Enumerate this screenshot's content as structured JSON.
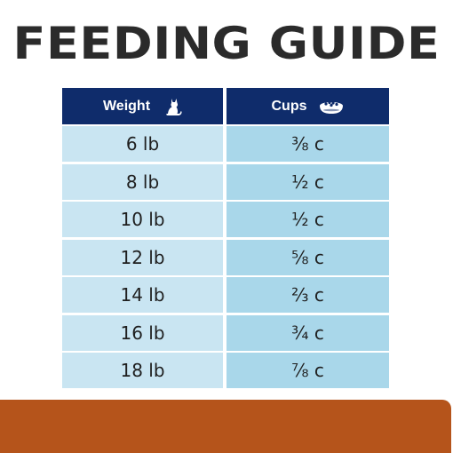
{
  "title": "FEEDING GUIDE",
  "table": {
    "headers": {
      "weight": {
        "label": "Weight",
        "icon": "cat-icon"
      },
      "cups": {
        "label": "Cups",
        "icon": "food-bowl-icon"
      }
    },
    "rows": [
      {
        "weight": "6 lb",
        "cups": "⅜ c"
      },
      {
        "weight": "8 lb",
        "cups": "½ c"
      },
      {
        "weight": "10 lb",
        "cups": "½ c"
      },
      {
        "weight": "12 lb",
        "cups": "⅝ c"
      },
      {
        "weight": "14 lb",
        "cups": "⅔ c"
      },
      {
        "weight": "16 lb",
        "cups": "¾ c"
      },
      {
        "weight": "18 lb",
        "cups": "⅞ c"
      }
    ]
  },
  "colors": {
    "header_bg": "#0f2c6b",
    "weight_cell_bg": "#c9e5f2",
    "cups_cell_bg": "#a9d7ea",
    "bottom_band": "#b5541b",
    "title_text": "#2b2b2b"
  }
}
